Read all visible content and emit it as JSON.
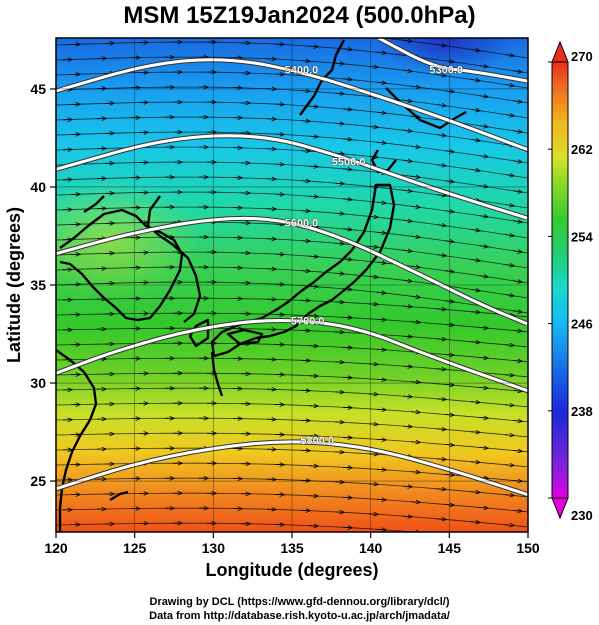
{
  "title": "MSM 15Z19Jan2024 (500.0hPa)",
  "xlabel": "Longitude (degrees)",
  "ylabel": "Latitude  (degrees)",
  "credit_line1": "Drawing by DCL (https://www.gfd-dennou.org/library/dcl/)",
  "credit_line2": "Data from http://database.rish.kyoto-u.ac.jp/arch/jmadata/",
  "chart_data": {
    "type": "heatmap",
    "xlim": [
      120,
      150
    ],
    "ylim": [
      22.4,
      47.6
    ],
    "xticks": [
      120,
      125,
      130,
      135,
      140,
      145,
      150
    ],
    "yticks": [
      25,
      30,
      35,
      40,
      45
    ],
    "grid": true,
    "colorbar": {
      "min": 230,
      "max": 270,
      "tick_labels": [
        "230",
        "238",
        "246",
        "254",
        "262",
        "270"
      ],
      "colors": [
        "#e000e0",
        "#6a2ad8",
        "#1a2ad8",
        "#1a8ce8",
        "#18d8e0",
        "#20d070",
        "#38c830",
        "#b8e028",
        "#f0e020",
        "#f0a020",
        "#f05a18",
        "#e83018"
      ]
    },
    "contours": [
      {
        "label": "5300.0",
        "points": [
          [
            140.5,
            47.6
          ],
          [
            144,
            46.1
          ],
          [
            146.5,
            45.9
          ],
          [
            150,
            45.4
          ]
        ]
      },
      {
        "label": "5400.0",
        "points": [
          [
            120,
            44.9
          ],
          [
            126,
            46.3
          ],
          [
            131,
            46.6
          ],
          [
            136,
            45.8
          ],
          [
            141,
            44.5
          ],
          [
            145,
            43.4
          ],
          [
            150,
            41.9
          ]
        ]
      },
      {
        "label": "5500.0",
        "points": [
          [
            120,
            40.9
          ],
          [
            127,
            42.5
          ],
          [
            133,
            42.7
          ],
          [
            138,
            41.6
          ],
          [
            144,
            39.9
          ],
          [
            150,
            38.4
          ]
        ]
      },
      {
        "label": "5600.0",
        "points": [
          [
            120,
            36.6
          ],
          [
            125,
            37.7
          ],
          [
            130,
            38.4
          ],
          [
            134,
            38.4
          ],
          [
            138,
            37.5
          ],
          [
            143,
            35.6
          ],
          [
            147,
            34.0
          ],
          [
            150,
            33.0
          ]
        ]
      },
      {
        "label": "5700.0",
        "points": [
          [
            120,
            30.5
          ],
          [
            124,
            31.7
          ],
          [
            129,
            32.8
          ],
          [
            134,
            33.3
          ],
          [
            139,
            32.9
          ],
          [
            144,
            31.3
          ],
          [
            150,
            29.6
          ]
        ]
      },
      {
        "label": "5800.0",
        "points": [
          [
            120,
            24.6
          ],
          [
            125,
            25.9
          ],
          [
            130,
            26.7
          ],
          [
            135,
            27.1
          ],
          [
            140,
            26.7
          ],
          [
            145,
            25.6
          ],
          [
            150,
            24.3
          ]
        ]
      }
    ],
    "contour_label_positions": [
      {
        "label": "5300.0",
        "at": [
          144.8,
          46.0
        ]
      },
      {
        "label": "5400.0",
        "at": [
          135.6,
          46.0
        ]
      },
      {
        "label": "5500.0",
        "at": [
          138.6,
          41.3
        ]
      },
      {
        "label": "5600.0",
        "at": [
          135.6,
          38.2
        ]
      },
      {
        "label": "5700.0",
        "at": [
          136.0,
          33.2
        ]
      },
      {
        "label": "5800.0",
        "at": [
          136.6,
          27.1
        ]
      }
    ]
  }
}
